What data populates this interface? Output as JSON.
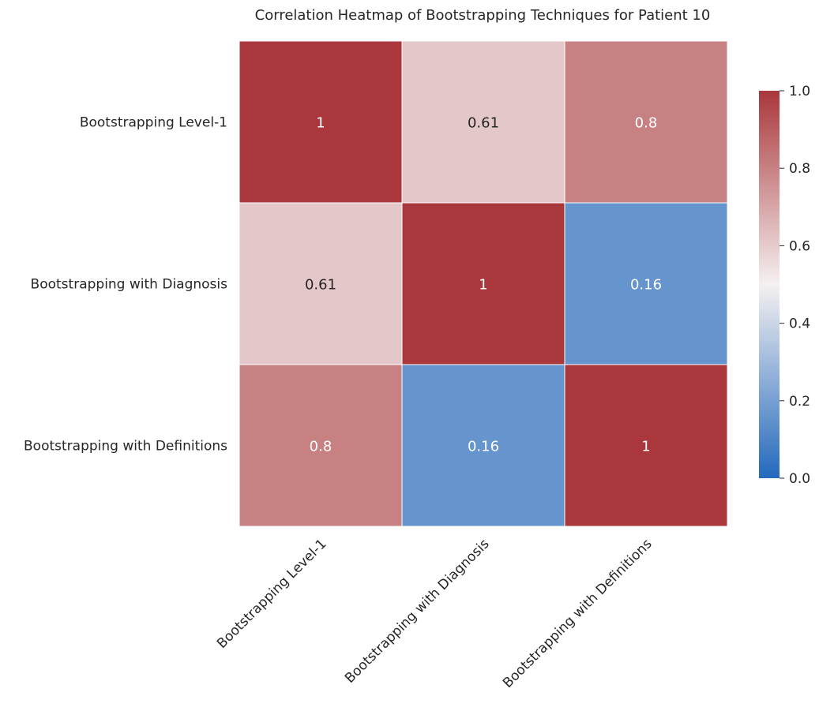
{
  "chart_data": {
    "type": "heatmap",
    "title": "Correlation Heatmap of Bootstrapping Techniques for Patient 10",
    "rows": [
      "Bootstrapping Level-1",
      "Bootstrapping with Diagnosis",
      "Bootstrapping with Definitions"
    ],
    "columns": [
      "Bootstrapping Level-1",
      "Bootstrapping with Diagnosis",
      "Bootstrapping with Definitions"
    ],
    "values": [
      [
        1,
        0.61,
        0.8
      ],
      [
        0.61,
        1,
        0.16
      ],
      [
        0.8,
        0.16,
        1
      ]
    ],
    "annotations": [
      [
        "1",
        "0.61",
        "0.8"
      ],
      [
        "0.61",
        "1",
        "0.16"
      ],
      [
        "0.8",
        "0.16",
        "1"
      ]
    ],
    "colorbar": {
      "range": [
        0,
        1
      ],
      "ticks": [
        "0.0",
        "0.2",
        "0.4",
        "0.6",
        "0.8",
        "1.0"
      ],
      "colormap": "vlag",
      "low_color": "#2369bd",
      "mid_color": "#f5f0f0",
      "high_color": "#a9373b"
    },
    "xlabel": "",
    "ylabel": "",
    "grid": false
  }
}
